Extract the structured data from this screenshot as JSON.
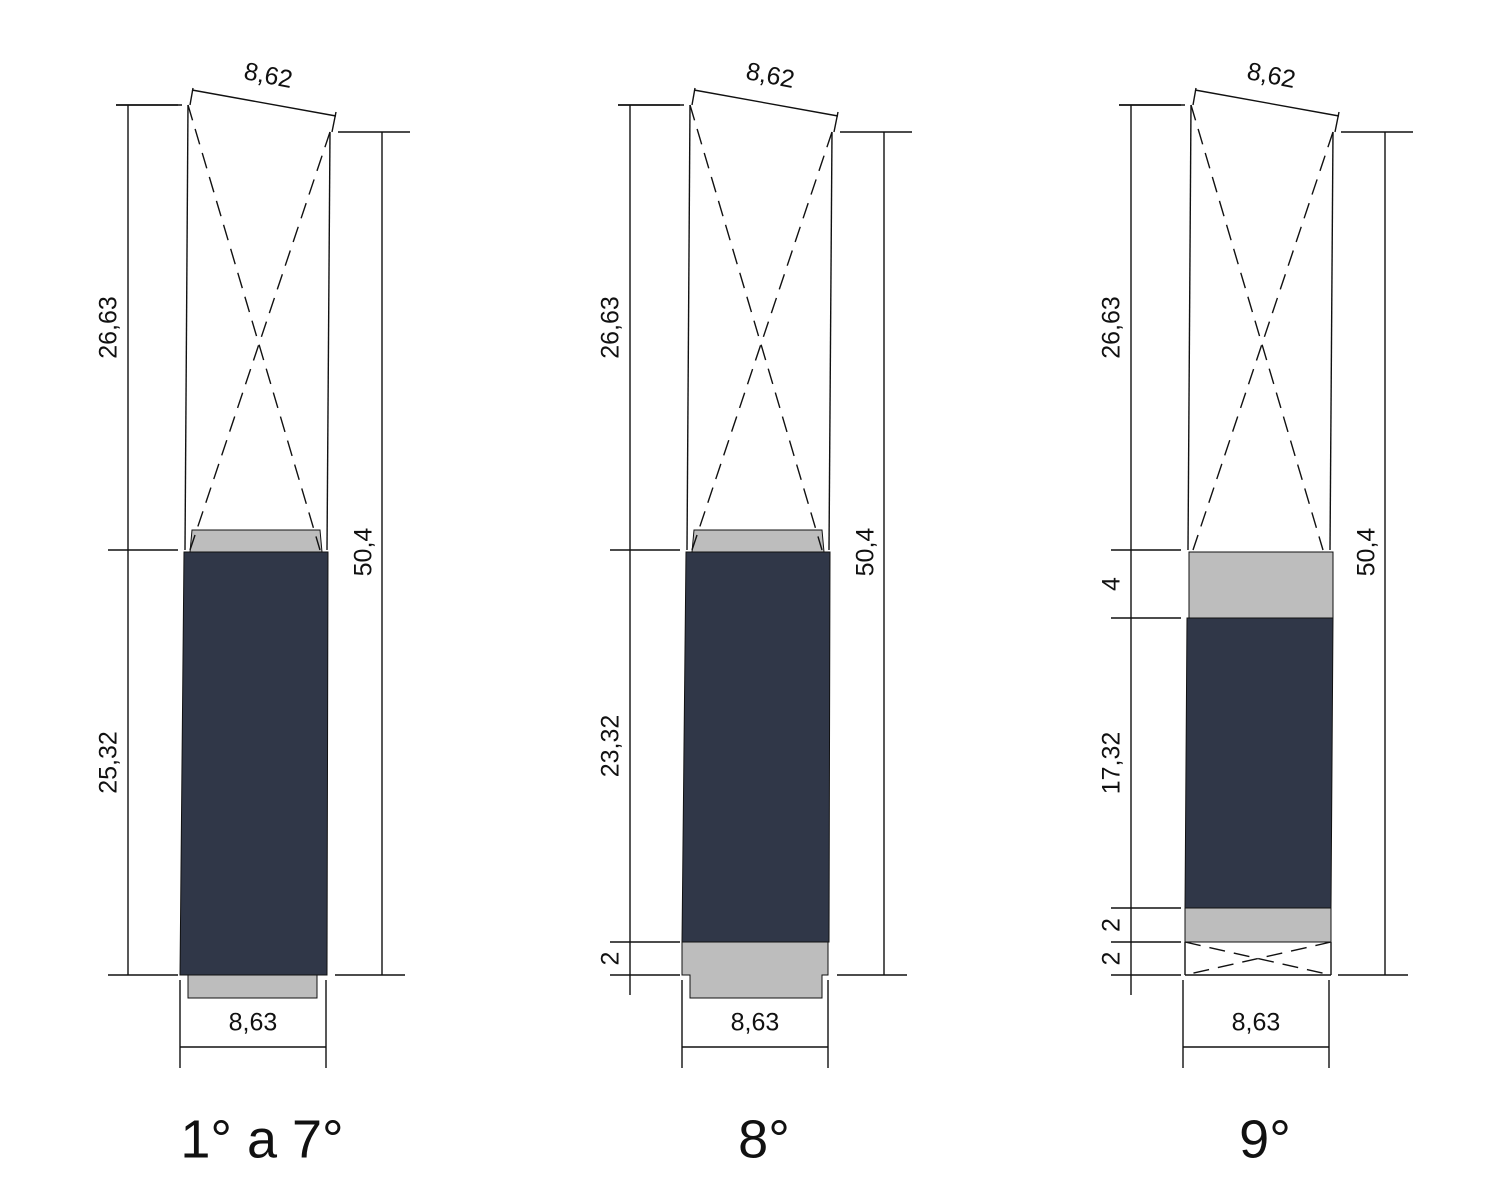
{
  "panels": [
    {
      "title": "1° a 7°",
      "top_width": "8,62",
      "bottom_width": "8,63",
      "total_height": "50,4",
      "left_dimensions": [
        "26,63",
        "25,32"
      ]
    },
    {
      "title": "8°",
      "top_width": "8,62",
      "bottom_width": "8,63",
      "total_height": "50,4",
      "left_dimensions": [
        "26,63",
        "23,32",
        "2"
      ]
    },
    {
      "title": "9°",
      "top_width": "8,62",
      "bottom_width": "8,63",
      "total_height": "50,4",
      "left_dimensions": [
        "26,63",
        "4",
        "17,32",
        "2",
        "2"
      ]
    }
  ]
}
